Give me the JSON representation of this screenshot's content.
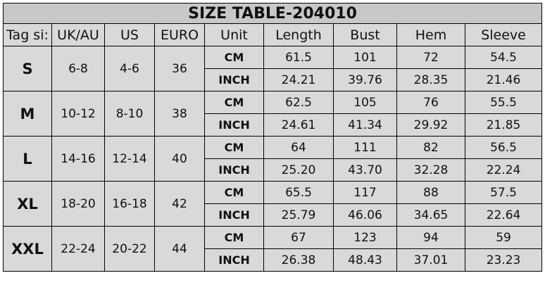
{
  "title": "SIZE TABLE-204010",
  "headers": [
    "Tag si:",
    "UK/AU",
    "US",
    "EURO",
    "Unit",
    "Length",
    "Bust",
    "Hem",
    "Sleeve"
  ],
  "rows": [
    {
      "size": "S",
      "uk": "6-8",
      "us": "4-6",
      "euro": "36",
      "lines": [
        [
          "CM",
          "61.5",
          "101",
          "72",
          "54.5"
        ],
        [
          "INCH",
          "24.21",
          "39.76",
          "28.35",
          "21.46"
        ]
      ]
    },
    {
      "size": "M",
      "uk": "10-12",
      "us": "8-10",
      "euro": "38",
      "lines": [
        [
          "CM",
          "62.5",
          "105",
          "76",
          "55.5"
        ],
        [
          "INCH",
          "24.61",
          "41.34",
          "29.92",
          "21.85"
        ]
      ]
    },
    {
      "size": "L",
      "uk": "14-16",
      "us": "12-14",
      "euro": "40",
      "lines": [
        [
          "CM",
          "64",
          "111",
          "82",
          "56.5"
        ],
        [
          "INCH",
          "25.20",
          "43.70",
          "32.28",
          "22.24"
        ]
      ]
    },
    {
      "size": "XL",
      "uk": "18-20",
      "us": "16-18",
      "euro": "42",
      "lines": [
        [
          "CM",
          "65.5",
          "117",
          "88",
          "57.5"
        ],
        [
          "INCH",
          "25.79",
          "46.06",
          "34.65",
          "22.64"
        ]
      ]
    },
    {
      "size": "XXL",
      "uk": "22-24",
      "us": "20-22",
      "euro": "44",
      "lines": [
        [
          "CM",
          "67",
          "123",
          "94",
          "59"
        ],
        [
          "INCH",
          "26.38",
          "48.43",
          "37.01",
          "23.23"
        ]
      ]
    }
  ]
}
